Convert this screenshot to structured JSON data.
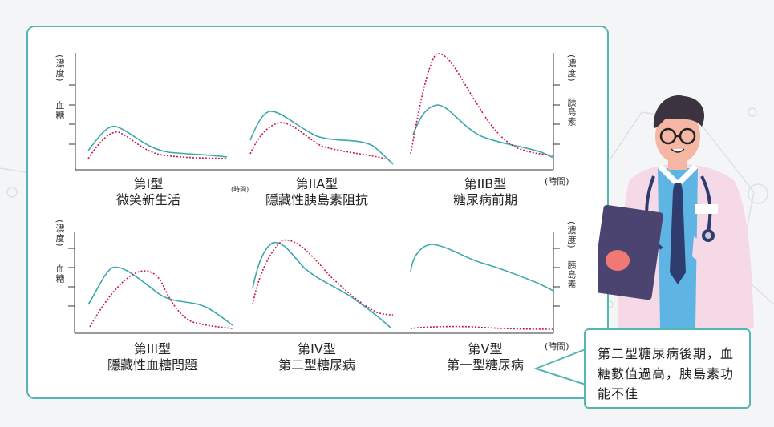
{
  "unit_time": "(時間)",
  "axis_left_top": "(濃度)",
  "axis_left_bottom": "血糖",
  "axis_right_top": "(濃度)",
  "axis_right_bottom": "胰島素",
  "panels": [
    {
      "title": "第I型",
      "subtitle": "微笑新生活"
    },
    {
      "title": "第IIA型",
      "subtitle": "隱藏性胰島素阻抗"
    },
    {
      "title": "第IIB型",
      "subtitle": "糖尿病前期"
    },
    {
      "title": "第III型",
      "subtitle": "隱藏性血糖問題"
    },
    {
      "title": "第IV型",
      "subtitle": "第二型糖尿病"
    },
    {
      "title": "第V型",
      "subtitle": "第一型糖尿病"
    }
  ],
  "callout": "第二型糖尿病後期，血糖數值過高，胰島素功能不佳",
  "colors": {
    "glucose": "#3ba9ad",
    "insulin": "#c8174f",
    "border": "#55b5b0"
  }
}
